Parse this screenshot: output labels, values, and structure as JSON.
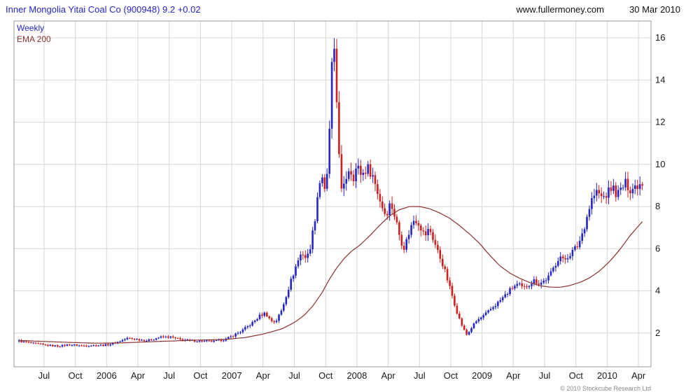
{
  "header": {
    "title": "Inner Mongolia Yitai Coal Co (900948) 9.2 +0.02",
    "site": "www.fullermoney.com",
    "date": "30 Mar 2010"
  },
  "footer": {
    "copyright": "© 2010 Stockcube Research Ltd"
  },
  "chart_data": {
    "type": "candlestick",
    "title": "Inner Mongolia Yitai Coal Co (900948) 9.2 +0.02",
    "last_price": 9.2,
    "change": 0.02,
    "legend": [
      {
        "label": "Weekly",
        "color": "#2525c8"
      },
      {
        "label": "EMA 200",
        "color": "#8b3232"
      }
    ],
    "ylim": [
      0.4,
      16.8
    ],
    "xlim": [
      2005.26,
      2010.35
    ],
    "y_ticks": [
      2,
      4,
      6,
      8,
      10,
      12,
      14,
      16
    ],
    "x_ticks": [
      {
        "t": 2005.5,
        "label": "Jul"
      },
      {
        "t": 2005.75,
        "label": "Oct"
      },
      {
        "t": 2006.0,
        "label": "2006"
      },
      {
        "t": 2006.25,
        "label": "Apr"
      },
      {
        "t": 2006.5,
        "label": "Jul"
      },
      {
        "t": 2006.75,
        "label": "Oct"
      },
      {
        "t": 2007.0,
        "label": "2007"
      },
      {
        "t": 2007.25,
        "label": "Apr"
      },
      {
        "t": 2007.5,
        "label": "Jul"
      },
      {
        "t": 2007.75,
        "label": "Oct"
      },
      {
        "t": 2008.0,
        "label": "2008"
      },
      {
        "t": 2008.25,
        "label": "Apr"
      },
      {
        "t": 2008.5,
        "label": "Jul"
      },
      {
        "t": 2008.75,
        "label": "Oct"
      },
      {
        "t": 2009.0,
        "label": "2009"
      },
      {
        "t": 2009.25,
        "label": "Apr"
      },
      {
        "t": 2009.5,
        "label": "Jul"
      },
      {
        "t": 2009.75,
        "label": "Oct"
      },
      {
        "t": 2010.0,
        "label": "2010"
      },
      {
        "t": 2010.25,
        "label": "Apr"
      }
    ],
    "x_range": [
      2005.3,
      2010.29
    ],
    "bars_per_year": 52,
    "close_keyframes": [
      [
        2005.3,
        1.62
      ],
      [
        2005.42,
        1.5
      ],
      [
        2005.52,
        1.42
      ],
      [
        2005.62,
        1.38
      ],
      [
        2005.7,
        1.45
      ],
      [
        2005.8,
        1.4
      ],
      [
        2005.92,
        1.42
      ],
      [
        2006.0,
        1.43
      ],
      [
        2006.08,
        1.56
      ],
      [
        2006.17,
        1.76
      ],
      [
        2006.25,
        1.7
      ],
      [
        2006.33,
        1.64
      ],
      [
        2006.42,
        1.8
      ],
      [
        2006.5,
        1.82
      ],
      [
        2006.58,
        1.7
      ],
      [
        2006.67,
        1.64
      ],
      [
        2006.75,
        1.62
      ],
      [
        2006.85,
        1.6
      ],
      [
        2006.95,
        1.7
      ],
      [
        2007.0,
        1.85
      ],
      [
        2007.08,
        2.1
      ],
      [
        2007.17,
        2.5
      ],
      [
        2007.23,
        2.85
      ],
      [
        2007.27,
        2.95
      ],
      [
        2007.31,
        2.6
      ],
      [
        2007.35,
        2.52
      ],
      [
        2007.4,
        3.1
      ],
      [
        2007.44,
        3.9
      ],
      [
        2007.48,
        4.6
      ],
      [
        2007.52,
        5.3
      ],
      [
        2007.56,
        5.85
      ],
      [
        2007.6,
        5.5
      ],
      [
        2007.63,
        6.2
      ],
      [
        2007.66,
        7.2
      ],
      [
        2007.69,
        8.8
      ],
      [
        2007.72,
        9.6
      ],
      [
        2007.74,
        8.6
      ],
      [
        2007.76,
        9.2
      ],
      [
        2007.78,
        11.6
      ],
      [
        2007.8,
        14.6
      ],
      [
        2007.82,
        15.1
      ],
      [
        2007.84,
        12.8
      ],
      [
        2007.86,
        10.4
      ],
      [
        2007.88,
        8.4
      ],
      [
        2007.91,
        9.3
      ],
      [
        2007.94,
        9.9
      ],
      [
        2007.97,
        9.4
      ],
      [
        2008.0,
        9.9
      ],
      [
        2008.04,
        9.5
      ],
      [
        2008.08,
        9.85
      ],
      [
        2008.12,
        9.6
      ],
      [
        2008.15,
        9.0
      ],
      [
        2008.19,
        8.2
      ],
      [
        2008.23,
        7.6
      ],
      [
        2008.27,
        8.2
      ],
      [
        2008.31,
        7.4
      ],
      [
        2008.35,
        6.4
      ],
      [
        2008.38,
        6.05
      ],
      [
        2008.42,
        6.85
      ],
      [
        2008.46,
        7.45
      ],
      [
        2008.5,
        7.2
      ],
      [
        2008.54,
        6.6
      ],
      [
        2008.58,
        6.95
      ],
      [
        2008.62,
        6.3
      ],
      [
        2008.65,
        5.8
      ],
      [
        2008.69,
        5.2
      ],
      [
        2008.73,
        4.4
      ],
      [
        2008.77,
        3.6
      ],
      [
        2008.81,
        2.8
      ],
      [
        2008.85,
        2.2
      ],
      [
        2008.88,
        1.9
      ],
      [
        2008.92,
        2.3
      ],
      [
        2008.96,
        2.6
      ],
      [
        2009.0,
        2.75
      ],
      [
        2009.04,
        2.95
      ],
      [
        2009.08,
        3.2
      ],
      [
        2009.12,
        3.4
      ],
      [
        2009.17,
        3.7
      ],
      [
        2009.21,
        3.95
      ],
      [
        2009.25,
        4.2
      ],
      [
        2009.29,
        4.3
      ],
      [
        2009.33,
        4.1
      ],
      [
        2009.37,
        4.3
      ],
      [
        2009.42,
        4.5
      ],
      [
        2009.46,
        4.35
      ],
      [
        2009.5,
        4.5
      ],
      [
        2009.54,
        4.7
      ],
      [
        2009.58,
        5.2
      ],
      [
        2009.62,
        5.7
      ],
      [
        2009.65,
        5.4
      ],
      [
        2009.69,
        5.7
      ],
      [
        2009.73,
        5.9
      ],
      [
        2009.77,
        6.2
      ],
      [
        2009.81,
        6.9
      ],
      [
        2009.85,
        7.8
      ],
      [
        2009.88,
        8.4
      ],
      [
        2009.92,
        8.7
      ],
      [
        2009.96,
        8.4
      ],
      [
        2010.0,
        8.6
      ],
      [
        2010.04,
        8.95
      ],
      [
        2010.08,
        8.55
      ],
      [
        2010.12,
        8.9
      ],
      [
        2010.15,
        9.1
      ],
      [
        2010.19,
        8.8
      ],
      [
        2010.23,
        9.0
      ],
      [
        2010.29,
        9.2
      ]
    ],
    "ema200_keyframes": [
      [
        2005.3,
        1.65
      ],
      [
        2005.6,
        1.58
      ],
      [
        2005.9,
        1.52
      ],
      [
        2006.1,
        1.53
      ],
      [
        2006.4,
        1.6
      ],
      [
        2006.7,
        1.66
      ],
      [
        2006.95,
        1.7
      ],
      [
        2007.1,
        1.78
      ],
      [
        2007.25,
        1.95
      ],
      [
        2007.4,
        2.2
      ],
      [
        2007.5,
        2.5
      ],
      [
        2007.58,
        2.85
      ],
      [
        2007.65,
        3.3
      ],
      [
        2007.72,
        3.9
      ],
      [
        2007.78,
        4.55
      ],
      [
        2007.84,
        5.1
      ],
      [
        2007.9,
        5.55
      ],
      [
        2007.96,
        5.9
      ],
      [
        2008.02,
        6.15
      ],
      [
        2008.1,
        6.6
      ],
      [
        2008.18,
        7.1
      ],
      [
        2008.26,
        7.55
      ],
      [
        2008.34,
        7.85
      ],
      [
        2008.42,
        8.0
      ],
      [
        2008.5,
        8.0
      ],
      [
        2008.58,
        7.9
      ],
      [
        2008.66,
        7.7
      ],
      [
        2008.74,
        7.45
      ],
      [
        2008.82,
        7.1
      ],
      [
        2008.9,
        6.7
      ],
      [
        2008.98,
        6.25
      ],
      [
        2009.06,
        5.7
      ],
      [
        2009.14,
        5.2
      ],
      [
        2009.22,
        4.85
      ],
      [
        2009.3,
        4.6
      ],
      [
        2009.38,
        4.4
      ],
      [
        2009.46,
        4.25
      ],
      [
        2009.54,
        4.18
      ],
      [
        2009.62,
        4.17
      ],
      [
        2009.7,
        4.25
      ],
      [
        2009.78,
        4.4
      ],
      [
        2009.86,
        4.62
      ],
      [
        2009.94,
        4.95
      ],
      [
        2010.02,
        5.4
      ],
      [
        2010.1,
        5.95
      ],
      [
        2010.18,
        6.6
      ],
      [
        2010.29,
        7.35
      ]
    ],
    "colors": {
      "up": "#2525c8",
      "down": "#cf1f1f",
      "ema": "#8b3232",
      "grid": "#d6d6d6",
      "border": "#9a9a9a",
      "axis_text": "#1a1a1a"
    }
  }
}
